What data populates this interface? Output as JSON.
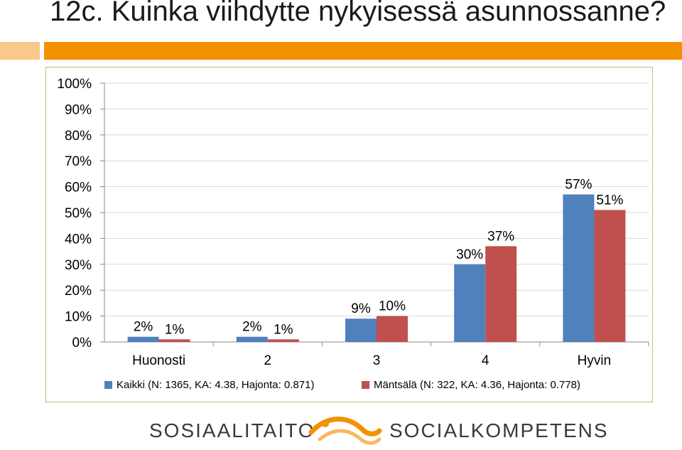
{
  "header": {
    "title": "12c. Kuinka viihdytte nykyisessä asunnossanne?"
  },
  "colors": {
    "accent_bar": "#f39200",
    "accent_bar_light": "#f9c88a",
    "series_kaikki": "#4f81bd",
    "series_mantsala": "#c0504d"
  },
  "chart_data": {
    "type": "bar",
    "title": "",
    "xlabel": "",
    "ylabel": "",
    "ylim": [
      0,
      100
    ],
    "yticks": [
      "0%",
      "10%",
      "20%",
      "30%",
      "40%",
      "50%",
      "60%",
      "70%",
      "80%",
      "90%",
      "100%"
    ],
    "grid": true,
    "legend_position": "bottom",
    "categories": [
      "Huonosti",
      "2",
      "3",
      "4",
      "Hyvin"
    ],
    "series": [
      {
        "name": "Kaikki (N: 1365, KA: 4.38, Hajonta: 0.871)",
        "values": [
          2,
          2,
          9,
          30,
          57
        ],
        "labels": [
          "2%",
          "2%",
          "9%",
          "30%",
          "57%"
        ]
      },
      {
        "name": "Mäntsälä (N: 322, KA: 4.36, Hajonta: 0.778)",
        "values": [
          1,
          1,
          10,
          37,
          51
        ],
        "labels": [
          "1%",
          "1%",
          "10%",
          "37%",
          "51%"
        ]
      }
    ]
  },
  "footer": {
    "logo_left": "SOSIAALITAITO",
    "logo_right": "SOCIALKOMPETENS",
    "logo_icon": "wave-logo-icon"
  }
}
